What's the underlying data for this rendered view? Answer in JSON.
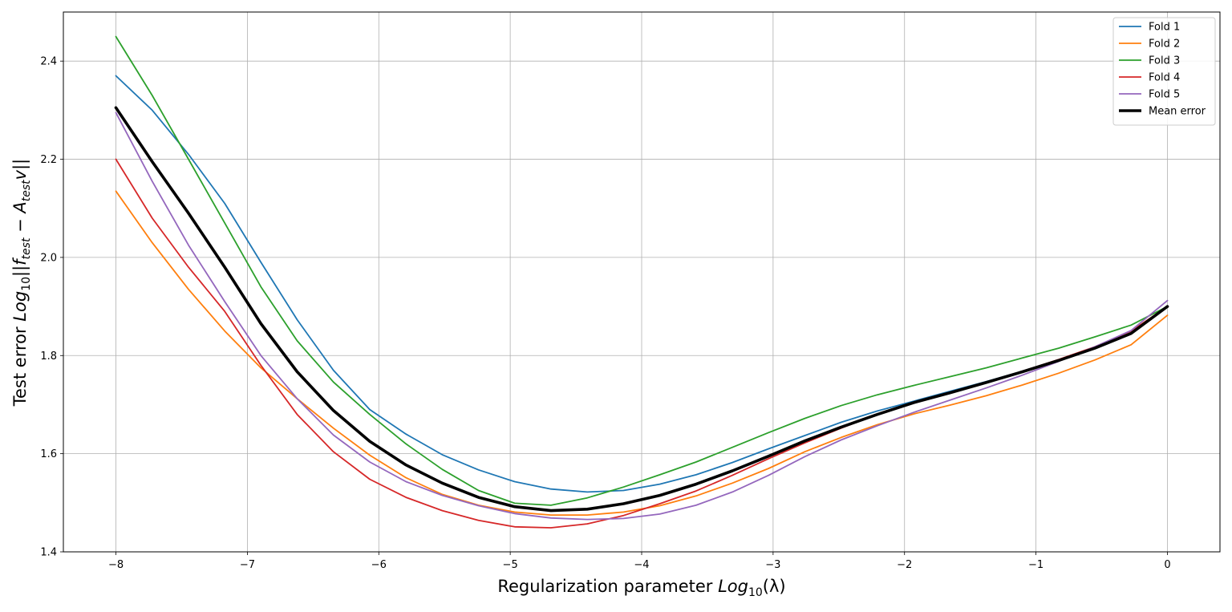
{
  "chart_data": {
    "type": "line",
    "title": "",
    "xlabel": {
      "prefix": "Regularization parameter ",
      "func": "Log",
      "sub": "10",
      "arg": "(λ)"
    },
    "ylabel": {
      "prefix": "Test error ",
      "func": "Log",
      "sub": "10",
      "mid": "||f",
      "sub2": "test",
      "mid2": " − A",
      "sub3": "test",
      "tail": "v||"
    },
    "xlim": [
      -8.4,
      0.4
    ],
    "ylim": [
      1.4,
      2.5
    ],
    "xticks": [
      -8,
      -7,
      -6,
      -5,
      -4,
      -3,
      -2,
      -1,
      0
    ],
    "xtick_labels": [
      "−8",
      "−7",
      "−6",
      "−5",
      "−4",
      "−3",
      "−2",
      "−1",
      "0"
    ],
    "yticks": [
      1.4,
      1.6,
      1.8,
      2.0,
      2.2,
      2.4
    ],
    "ytick_labels": [
      "1.4",
      "1.6",
      "1.8",
      "2.0",
      "2.2",
      "2.4"
    ],
    "grid": true,
    "legend_position": "top-right",
    "x": [
      -8.0,
      -7.724,
      -7.448,
      -7.172,
      -6.897,
      -6.621,
      -6.345,
      -6.069,
      -5.793,
      -5.517,
      -5.241,
      -4.966,
      -4.69,
      -4.414,
      -4.138,
      -3.862,
      -3.586,
      -3.31,
      -3.034,
      -2.759,
      -2.483,
      -2.207,
      -1.931,
      -1.655,
      -1.379,
      -1.103,
      -0.828,
      -0.552,
      -0.276,
      0.0
    ],
    "series": [
      {
        "name": "Fold 1",
        "color": "#1f77b4",
        "width": 1.8,
        "values": [
          2.37,
          2.3,
          2.21,
          2.11,
          1.99,
          1.873,
          1.77,
          1.69,
          1.64,
          1.598,
          1.567,
          1.543,
          1.528,
          1.522,
          1.525,
          1.538,
          1.557,
          1.582,
          1.61,
          1.637,
          1.664,
          1.687,
          1.707,
          1.727,
          1.747,
          1.768,
          1.79,
          1.815,
          1.846,
          1.9
        ]
      },
      {
        "name": "Fold 2",
        "color": "#ff7f0e",
        "width": 1.8,
        "values": [
          2.135,
          2.03,
          1.935,
          1.85,
          1.775,
          1.712,
          1.652,
          1.597,
          1.551,
          1.517,
          1.495,
          1.481,
          1.475,
          1.475,
          1.481,
          1.494,
          1.514,
          1.54,
          1.57,
          1.604,
          1.633,
          1.659,
          1.681,
          1.699,
          1.718,
          1.74,
          1.764,
          1.791,
          1.822,
          1.882
        ]
      },
      {
        "name": "Fold 3",
        "color": "#2ca02c",
        "width": 1.8,
        "values": [
          2.45,
          2.33,
          2.2,
          2.07,
          1.94,
          1.83,
          1.746,
          1.68,
          1.62,
          1.568,
          1.525,
          1.499,
          1.495,
          1.51,
          1.532,
          1.557,
          1.583,
          1.613,
          1.643,
          1.672,
          1.698,
          1.72,
          1.739,
          1.757,
          1.775,
          1.795,
          1.815,
          1.838,
          1.862,
          1.9
        ]
      },
      {
        "name": "Fold 4",
        "color": "#d62728",
        "width": 1.8,
        "values": [
          2.2,
          2.08,
          1.98,
          1.89,
          1.78,
          1.68,
          1.604,
          1.548,
          1.511,
          1.484,
          1.464,
          1.451,
          1.449,
          1.457,
          1.474,
          1.498,
          1.524,
          1.556,
          1.59,
          1.622,
          1.652,
          1.68,
          1.703,
          1.724,
          1.745,
          1.768,
          1.792,
          1.818,
          1.85,
          1.9
        ]
      },
      {
        "name": "Fold 5",
        "color": "#9467bd",
        "width": 1.8,
        "values": [
          2.295,
          2.155,
          2.025,
          1.91,
          1.8,
          1.712,
          1.638,
          1.583,
          1.543,
          1.515,
          1.494,
          1.478,
          1.469,
          1.466,
          1.468,
          1.477,
          1.495,
          1.522,
          1.556,
          1.594,
          1.628,
          1.657,
          1.684,
          1.709,
          1.734,
          1.76,
          1.788,
          1.818,
          1.851,
          1.912
        ]
      },
      {
        "name": "Mean error",
        "color": "#000000",
        "width": 3.6,
        "values": [
          2.305,
          2.195,
          2.09,
          1.98,
          1.865,
          1.767,
          1.688,
          1.625,
          1.577,
          1.54,
          1.511,
          1.492,
          1.484,
          1.487,
          1.498,
          1.515,
          1.538,
          1.565,
          1.595,
          1.626,
          1.654,
          1.68,
          1.704,
          1.724,
          1.745,
          1.767,
          1.79,
          1.815,
          1.845,
          1.9
        ]
      }
    ]
  }
}
